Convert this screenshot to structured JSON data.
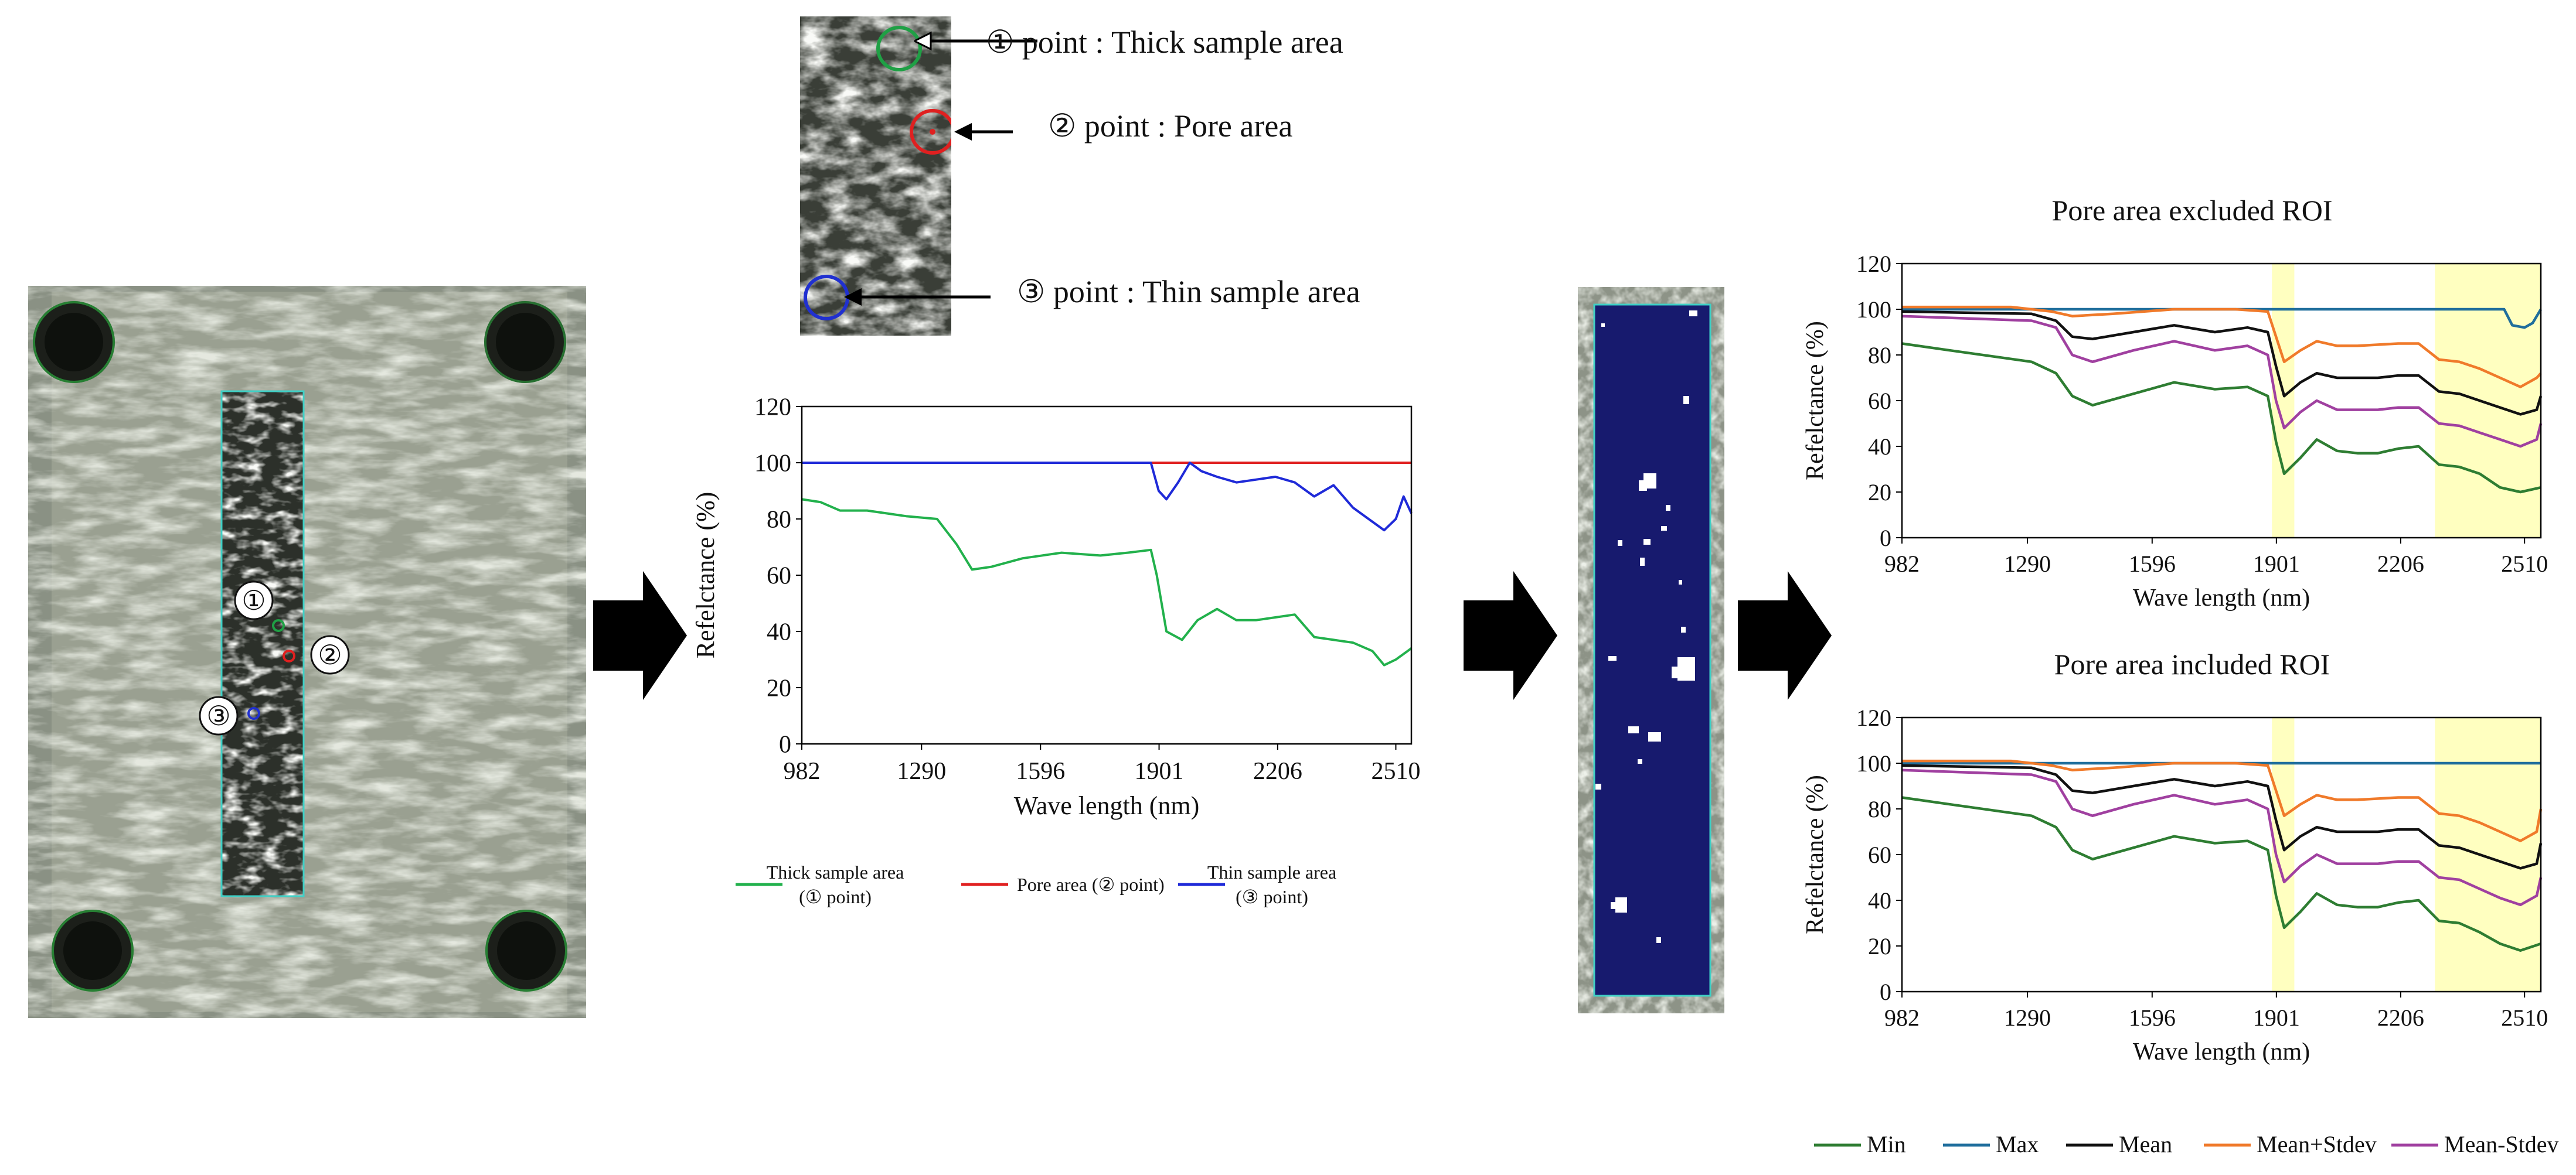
{
  "sample_photo": {
    "labels": [
      "①",
      "②",
      "③"
    ],
    "marker_colors": [
      "#1fa045",
      "#e02020",
      "#2030d0"
    ]
  },
  "zoom_callouts": [
    {
      "text": "① point : Thick sample area",
      "color": "#1fa045"
    },
    {
      "text": "② point : Pore area",
      "color": "#e02020"
    },
    {
      "text": "③ point : Thin sample area",
      "color": "#2030d0"
    }
  ],
  "chart_data": [
    {
      "id": "point-spectra",
      "type": "line",
      "xlabel": "Wave length (nm)",
      "ylabel": "Refelctance (%)",
      "x_ticks": [
        982,
        1290,
        1596,
        1901,
        2206,
        2510
      ],
      "xlim": [
        982,
        2550
      ],
      "ylim": [
        0,
        120
      ],
      "y_ticks": [
        0,
        20,
        40,
        60,
        80,
        100,
        120
      ],
      "grid": false,
      "legend_position": "bottom",
      "series": [
        {
          "name": "Thick sample area (① point)",
          "legend_lines": [
            "Thick sample area",
            "(① point)"
          ],
          "color": "#22b14c",
          "x": [
            982,
            1030,
            1080,
            1150,
            1250,
            1330,
            1380,
            1420,
            1470,
            1550,
            1650,
            1750,
            1820,
            1880,
            1895,
            1920,
            1960,
            2000,
            2050,
            2100,
            2150,
            2200,
            2250,
            2300,
            2350,
            2400,
            2450,
            2480,
            2510,
            2540,
            2550
          ],
          "y": [
            87,
            86,
            83,
            83,
            81,
            80,
            71,
            62,
            63,
            66,
            68,
            67,
            68,
            69,
            60,
            40,
            37,
            44,
            48,
            44,
            44,
            45,
            46,
            38,
            37,
            36,
            33,
            28,
            30,
            33,
            34
          ]
        },
        {
          "name": "Pore area (② point)",
          "legend_lines": [
            "Pore area (② point)"
          ],
          "color": "#e02020",
          "x": [
            982,
            2550
          ],
          "y": [
            100,
            100
          ]
        },
        {
          "name": "Thin sample area (③ point)",
          "legend_lines": [
            "Thin sample area",
            "(③ point)"
          ],
          "color": "#1f2ad8",
          "x": [
            982,
            1880,
            1900,
            1920,
            1950,
            1980,
            2010,
            2050,
            2100,
            2150,
            2200,
            2250,
            2300,
            2350,
            2400,
            2440,
            2480,
            2510,
            2530,
            2550
          ],
          "y": [
            100,
            100,
            90,
            87,
            93,
            100,
            97,
            95,
            93,
            94,
            95,
            93,
            88,
            92,
            84,
            80,
            76,
            80,
            88,
            82
          ]
        }
      ]
    },
    {
      "id": "roi-excluded",
      "type": "line",
      "title": "Pore area excluded ROI",
      "xlabel": "Wave length (nm)",
      "ylabel": "Refelctance (%)",
      "x_ticks": [
        982,
        1290,
        1596,
        1901,
        2206,
        2510
      ],
      "xlim": [
        982,
        2550
      ],
      "ylim": [
        0,
        120
      ],
      "y_ticks": [
        0,
        20,
        40,
        60,
        80,
        100,
        120
      ],
      "grid": false,
      "highlight_bands": [
        [
          1890,
          1945
        ],
        [
          2290,
          2550
        ]
      ],
      "series": [
        {
          "name": "Min",
          "color": "#2e7d32",
          "x": [
            982,
            1100,
            1300,
            1360,
            1400,
            1450,
            1550,
            1650,
            1750,
            1830,
            1880,
            1900,
            1920,
            1960,
            2000,
            2050,
            2100,
            2150,
            2200,
            2250,
            2300,
            2350,
            2400,
            2450,
            2500,
            2550
          ],
          "y": [
            85,
            82,
            77,
            72,
            62,
            58,
            63,
            68,
            65,
            66,
            62,
            42,
            28,
            35,
            43,
            38,
            37,
            37,
            39,
            40,
            32,
            31,
            28,
            22,
            20,
            22
          ]
        },
        {
          "name": "Max",
          "color": "#1f6e9c",
          "x": [
            982,
            2460,
            2480,
            2510,
            2530,
            2550
          ],
          "y": [
            100,
            100,
            93,
            92,
            94,
            100
          ]
        },
        {
          "name": "Mean",
          "color": "#111111",
          "x": [
            982,
            1300,
            1360,
            1400,
            1450,
            1550,
            1650,
            1750,
            1830,
            1880,
            1900,
            1920,
            1960,
            2000,
            2050,
            2100,
            2150,
            2200,
            2250,
            2300,
            2350,
            2400,
            2450,
            2500,
            2540,
            2550
          ],
          "y": [
            99,
            98,
            95,
            88,
            87,
            90,
            93,
            90,
            92,
            90,
            75,
            62,
            68,
            72,
            70,
            70,
            70,
            71,
            71,
            64,
            63,
            60,
            57,
            54,
            56,
            62
          ]
        },
        {
          "name": "Mean+Stdev",
          "color": "#f07a2a",
          "x": [
            982,
            1250,
            1300,
            1350,
            1400,
            1500,
            1650,
            1800,
            1880,
            1900,
            1920,
            1960,
            2000,
            2050,
            2100,
            2200,
            2250,
            2300,
            2350,
            2400,
            2450,
            2500,
            2540,
            2550
          ],
          "y": [
            101,
            101,
            100,
            99,
            97,
            98,
            100,
            100,
            99,
            88,
            77,
            82,
            86,
            84,
            84,
            85,
            85,
            78,
            77,
            74,
            70,
            66,
            70,
            72
          ]
        },
        {
          "name": "Mean-Stdev",
          "color": "#a040a0",
          "x": [
            982,
            1300,
            1360,
            1400,
            1450,
            1550,
            1650,
            1750,
            1830,
            1880,
            1900,
            1920,
            1960,
            2000,
            2050,
            2100,
            2150,
            2200,
            2250,
            2300,
            2350,
            2400,
            2450,
            2500,
            2540,
            2550
          ],
          "y": [
            97,
            95,
            92,
            80,
            77,
            82,
            86,
            82,
            84,
            80,
            60,
            48,
            55,
            60,
            56,
            56,
            56,
            57,
            57,
            50,
            49,
            46,
            43,
            40,
            43,
            50
          ]
        }
      ]
    },
    {
      "id": "roi-included",
      "type": "line",
      "title": "Pore area included ROI",
      "xlabel": "Wave length (nm)",
      "ylabel": "Refelctance (%)",
      "x_ticks": [
        982,
        1290,
        1596,
        1901,
        2206,
        2510
      ],
      "xlim": [
        982,
        2550
      ],
      "ylim": [
        0,
        120
      ],
      "y_ticks": [
        0,
        20,
        40,
        60,
        80,
        100,
        120
      ],
      "grid": false,
      "highlight_bands": [
        [
          1890,
          1945
        ],
        [
          2290,
          2550
        ]
      ],
      "legend_position": "bottom",
      "series": [
        {
          "name": "Min",
          "color": "#2e7d32",
          "x": [
            982,
            1100,
            1300,
            1360,
            1400,
            1450,
            1550,
            1650,
            1750,
            1830,
            1880,
            1900,
            1920,
            1960,
            2000,
            2050,
            2100,
            2150,
            2200,
            2250,
            2300,
            2350,
            2400,
            2450,
            2500,
            2550
          ],
          "y": [
            85,
            82,
            77,
            72,
            62,
            58,
            63,
            68,
            65,
            66,
            62,
            42,
            28,
            35,
            43,
            38,
            37,
            37,
            39,
            40,
            31,
            30,
            26,
            21,
            18,
            21
          ]
        },
        {
          "name": "Max",
          "color": "#1f6e9c",
          "x": [
            982,
            2550
          ],
          "y": [
            100,
            100
          ]
        },
        {
          "name": "Mean",
          "color": "#111111",
          "x": [
            982,
            1300,
            1360,
            1400,
            1450,
            1550,
            1650,
            1750,
            1830,
            1880,
            1900,
            1920,
            1960,
            2000,
            2050,
            2100,
            2150,
            2200,
            2250,
            2300,
            2350,
            2400,
            2450,
            2500,
            2540,
            2550
          ],
          "y": [
            99,
            98,
            95,
            88,
            87,
            90,
            93,
            90,
            92,
            90,
            75,
            62,
            68,
            72,
            70,
            70,
            70,
            71,
            71,
            64,
            63,
            60,
            57,
            54,
            56,
            65
          ]
        },
        {
          "name": "Mean+Stdev",
          "color": "#f07a2a",
          "x": [
            982,
            1250,
            1300,
            1350,
            1400,
            1500,
            1650,
            1800,
            1880,
            1900,
            1920,
            1960,
            2000,
            2050,
            2100,
            2200,
            2250,
            2300,
            2350,
            2400,
            2450,
            2500,
            2540,
            2550
          ],
          "y": [
            101,
            101,
            100,
            99,
            97,
            98,
            100,
            100,
            99,
            88,
            77,
            82,
            86,
            84,
            84,
            85,
            85,
            78,
            77,
            74,
            70,
            66,
            70,
            80
          ]
        },
        {
          "name": "Mean-Stdev",
          "color": "#a040a0",
          "x": [
            982,
            1300,
            1360,
            1400,
            1450,
            1550,
            1650,
            1750,
            1830,
            1880,
            1900,
            1920,
            1960,
            2000,
            2050,
            2100,
            2150,
            2200,
            2250,
            2300,
            2350,
            2400,
            2450,
            2500,
            2540,
            2550
          ],
          "y": [
            97,
            95,
            92,
            80,
            77,
            82,
            86,
            82,
            84,
            80,
            60,
            48,
            55,
            60,
            56,
            56,
            56,
            57,
            57,
            50,
            49,
            45,
            41,
            38,
            42,
            50
          ]
        }
      ]
    }
  ]
}
